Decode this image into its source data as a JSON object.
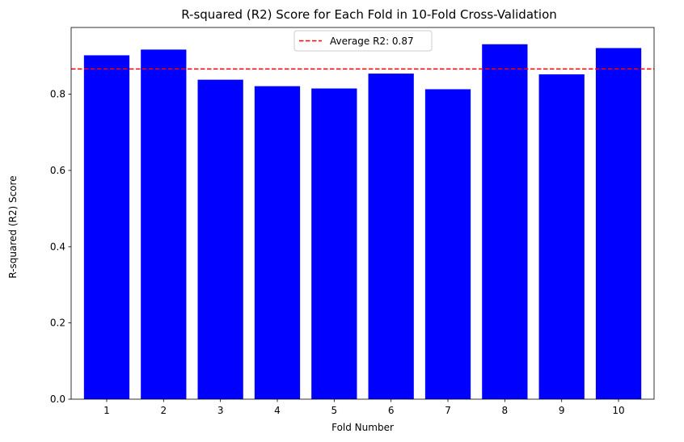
{
  "chart_data": {
    "type": "bar",
    "title": "R-squared (R2) Score for Each Fold in 10-Fold Cross-Validation",
    "xlabel": "Fold Number",
    "ylabel": "R-squared (R2) Score",
    "categories": [
      "1",
      "2",
      "3",
      "4",
      "5",
      "6",
      "7",
      "8",
      "9",
      "10"
    ],
    "values": [
      0.902,
      0.917,
      0.838,
      0.821,
      0.815,
      0.854,
      0.813,
      0.931,
      0.852,
      0.921
    ],
    "bar_color": "#0000ff",
    "ylim": [
      0,
      0.975
    ],
    "yticks": [
      0.0,
      0.2,
      0.4,
      0.6,
      0.8
    ],
    "ytick_labels": [
      "0.0",
      "0.2",
      "0.4",
      "0.6",
      "0.8"
    ],
    "average_line": {
      "value": 0.866,
      "color": "#ff0000",
      "style": "dashed",
      "label": "Average R2: 0.87"
    },
    "legend_position": "top-center",
    "grid": false
  }
}
